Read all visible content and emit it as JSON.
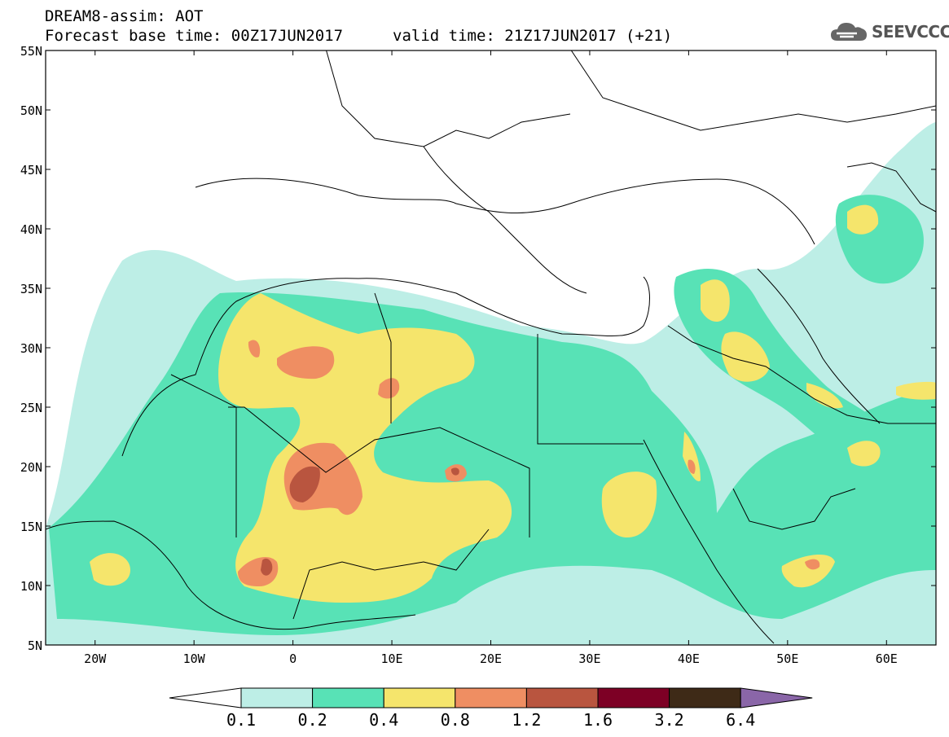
{
  "header": {
    "title_line1": "DREAM8-assim: AOT",
    "title_line2": "Forecast base time: 00Z17JUN2017",
    "valid_time": "valid time: 21Z17JUN2017 (+21)"
  },
  "logo": {
    "text": "SEEVCCC",
    "icon": "cloud-icon"
  },
  "map": {
    "lat_labels": [
      "55N",
      "50N",
      "45N",
      "40N",
      "35N",
      "30N",
      "25N",
      "20N",
      "15N",
      "10N",
      "5N"
    ],
    "lon_labels": [
      "20W",
      "10W",
      "0",
      "10E",
      "20E",
      "30E",
      "40E",
      "50E",
      "60E"
    ],
    "lat_range": [
      5,
      55
    ],
    "lon_range": [
      -25,
      65
    ]
  },
  "legend": {
    "labels": [
      "0.1",
      "0.2",
      "0.4",
      "0.8",
      "1.2",
      "1.6",
      "3.2",
      "6.4"
    ],
    "colors": [
      "#ffffff",
      "#bdeee6",
      "#58e2b6",
      "#f5e56c",
      "#ef8e62",
      "#b9553f",
      "#7d0025",
      "#3e2a17",
      "#8a66a8"
    ]
  }
}
